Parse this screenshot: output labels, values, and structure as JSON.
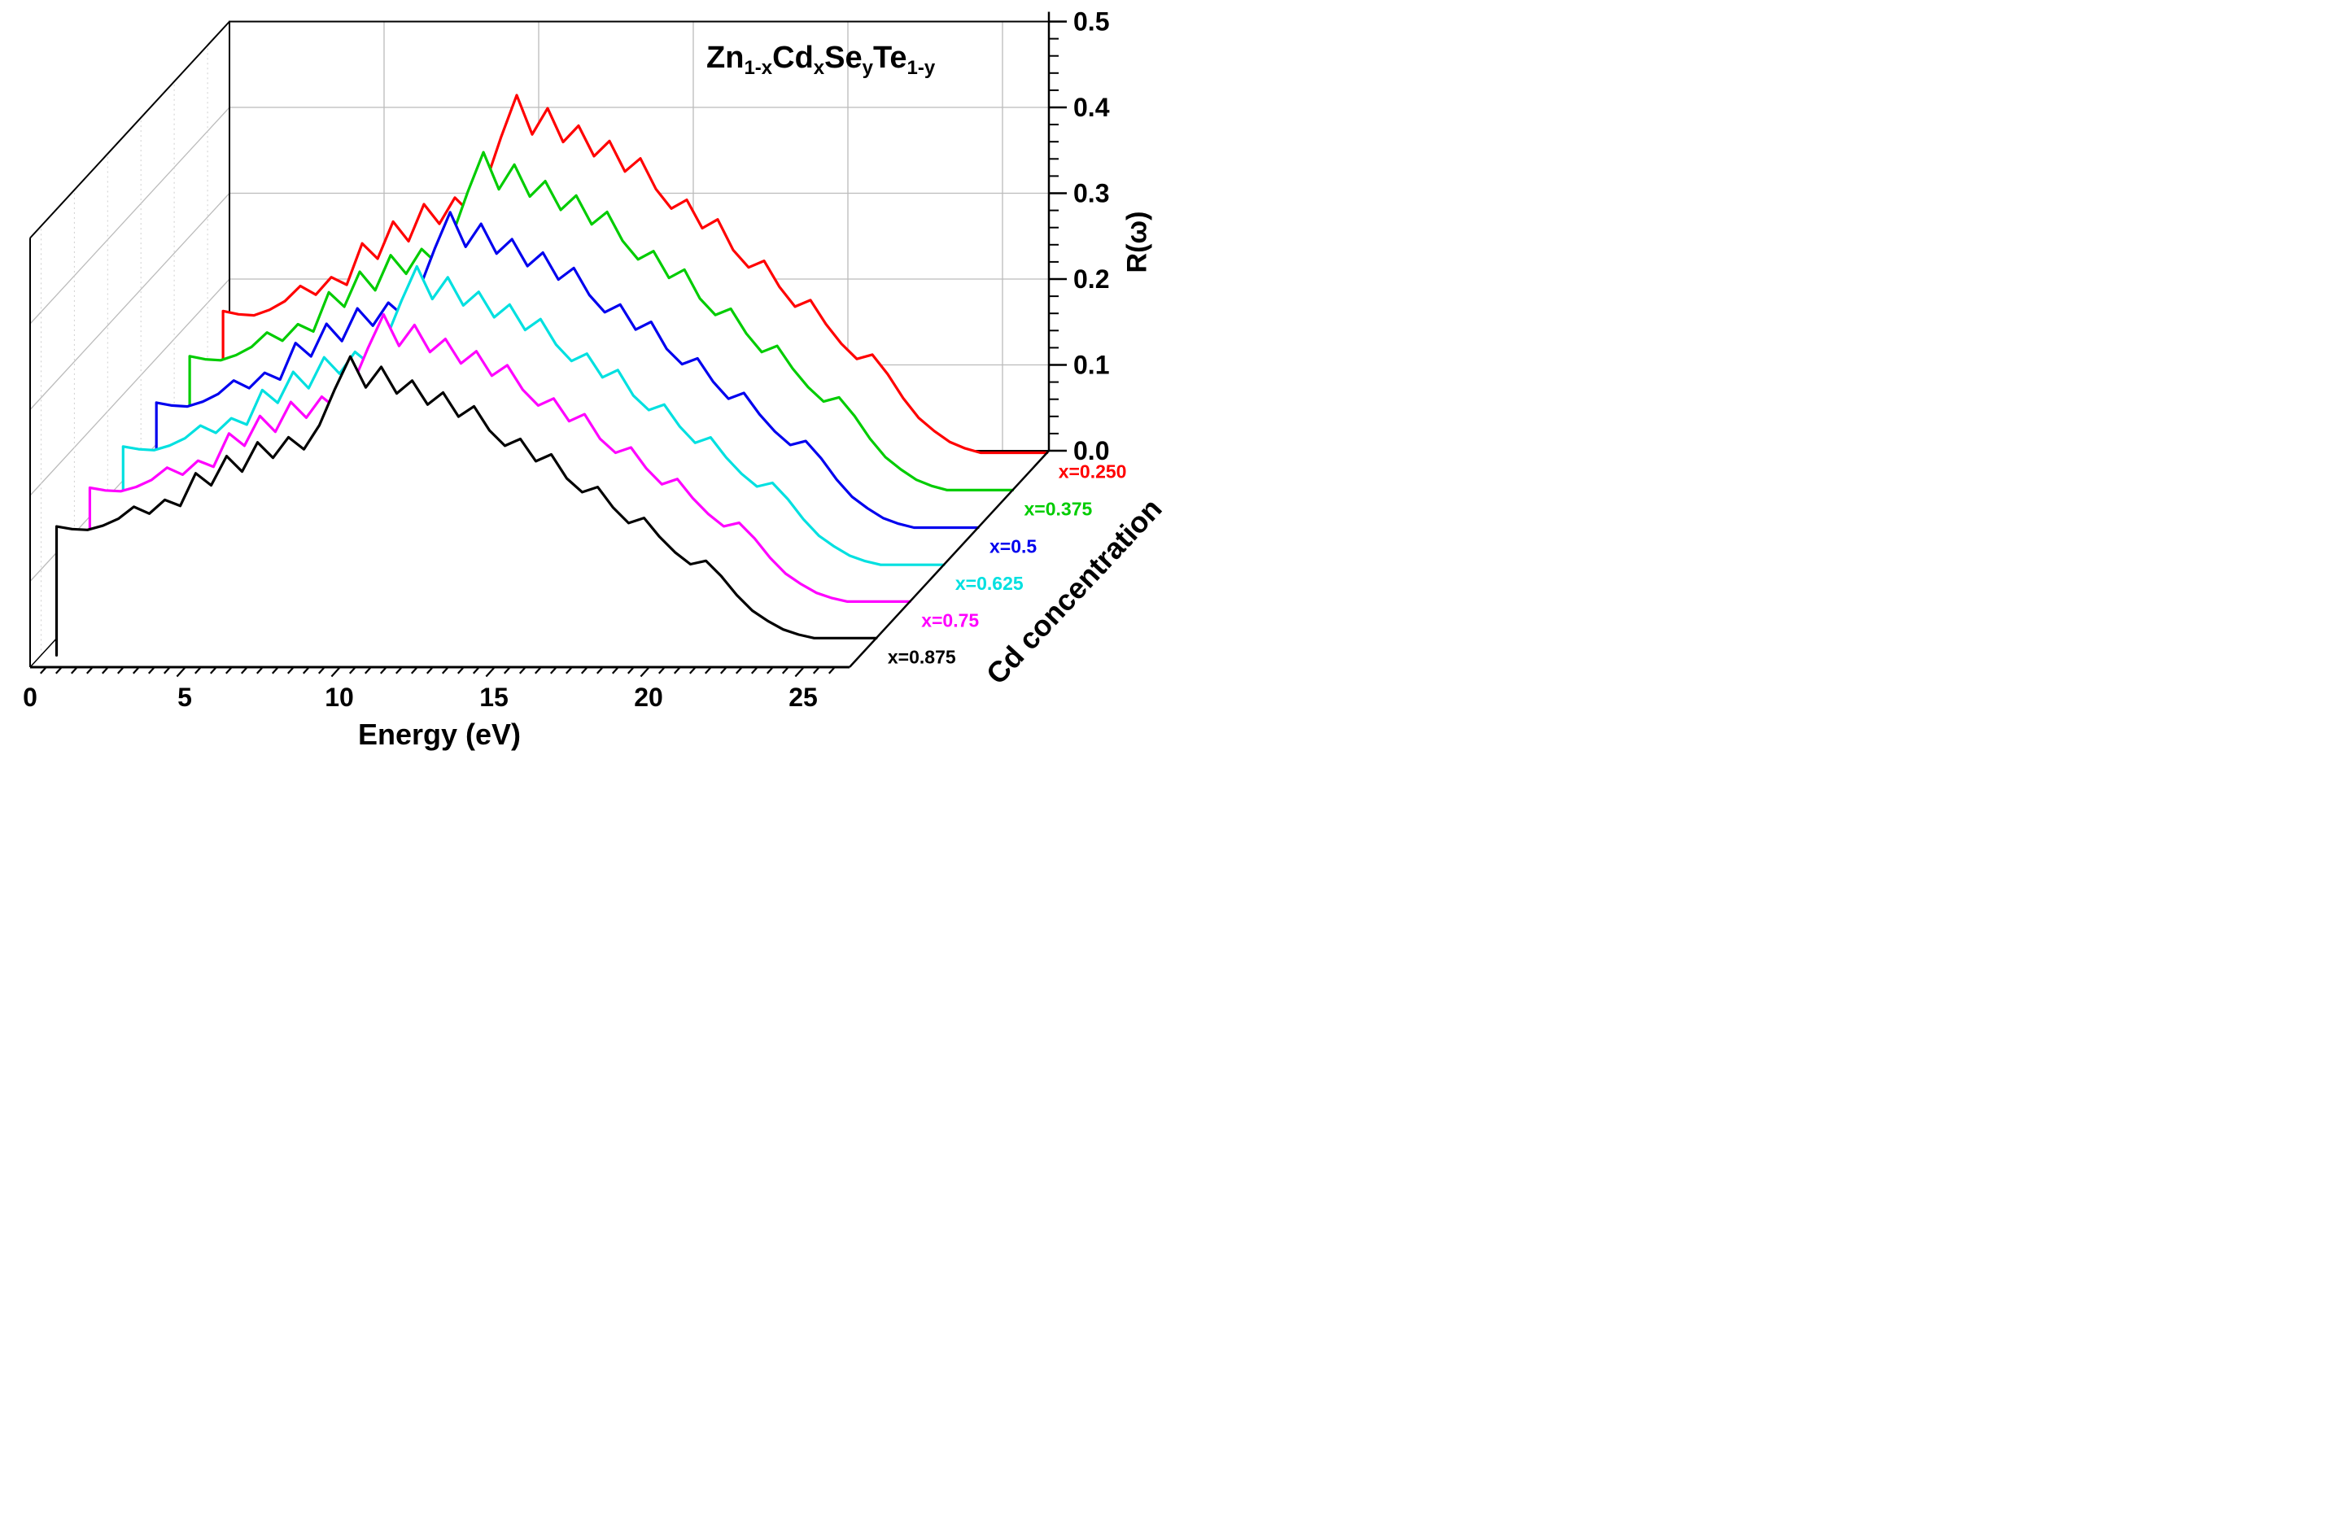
{
  "chart_data": {
    "type": "line",
    "style": "3d-waterfall",
    "title": {
      "plain": "Zn1-xCdxSeyTe1-y",
      "parts": [
        {
          "t": "Zn"
        },
        {
          "t": "1-x",
          "sub": true
        },
        {
          "t": "Cd"
        },
        {
          "t": "x",
          "sub": true
        },
        {
          "t": "Se"
        },
        {
          "t": "y",
          "sub": true
        },
        {
          "t": "Te"
        },
        {
          "t": "1-y",
          "sub": true
        }
      ]
    },
    "x_axis": {
      "label": "Energy (eV)",
      "ticks": [
        0,
        5,
        10,
        15,
        20,
        25
      ],
      "range": [
        0,
        26.5
      ],
      "hatch_step": 0.5
    },
    "y_axis": {
      "label": "R(ω)",
      "ticks": [
        "0.0",
        "0.1",
        "0.2",
        "0.3",
        "0.4",
        "0.5"
      ],
      "range": [
        0,
        0.5
      ],
      "minor_step": 0.02
    },
    "z_axis": {
      "label": "Cd concentration"
    },
    "grid": {
      "color": "#bbbbbb",
      "back_wall_x_lines": [
        5,
        10,
        15,
        20,
        25
      ],
      "back_wall_y_lines": [
        0.1,
        0.2,
        0.3,
        0.4
      ]
    },
    "energy": [
      0.5,
      1.0,
      1.5,
      2.0,
      2.5,
      3.0,
      3.5,
      4.0,
      4.5,
      5.0,
      5.5,
      6.0,
      6.5,
      7.0,
      7.5,
      8.0,
      8.5,
      9.0,
      9.5,
      10.0,
      10.5,
      11.0,
      11.5,
      12.0,
      12.5,
      13.0,
      13.5,
      14.0,
      14.5,
      15.0,
      15.5,
      16.0,
      16.5,
      17.0,
      17.5,
      18.0,
      18.5,
      19.0,
      19.5,
      20.0,
      20.5,
      21.0,
      21.5,
      22.0,
      22.5,
      23.0,
      23.5,
      24.0,
      24.5,
      25.0
    ],
    "base_reflectivity": [
      0.15,
      0.147,
      0.146,
      0.151,
      0.159,
      0.173,
      0.165,
      0.181,
      0.174,
      0.212,
      0.198,
      0.232,
      0.214,
      0.248,
      0.23,
      0.254,
      0.24,
      0.268,
      0.31,
      0.348,
      0.312,
      0.336,
      0.305,
      0.32,
      0.292,
      0.306,
      0.278,
      0.29,
      0.262,
      0.244,
      0.252,
      0.226,
      0.234,
      0.206,
      0.19,
      0.196,
      0.172,
      0.154,
      0.16,
      0.138,
      0.12,
      0.106,
      0.11,
      0.092,
      0.07,
      0.052,
      0.04,
      0.03,
      0.024,
      0.02
    ],
    "values_note": "R(E) of each series = base_reflectivity x scale; curves offset along the Cd-concentration depth axis",
    "series": [
      {
        "label": "x=0.250",
        "color": "#ff0000",
        "scale": 1.27,
        "depth": 0.89,
        "peak_R": 0.44
      },
      {
        "label": "x=0.375",
        "color": "#00cc00",
        "scale": 1.2,
        "depth": 0.723,
        "peak_R": 0.42
      },
      {
        "label": "x=0.5",
        "color": "#0000ee",
        "scale": 1.12,
        "depth": 0.556,
        "peak_R": 0.39
      },
      {
        "label": "x=0.625",
        "color": "#00e0e0",
        "scale": 1.06,
        "depth": 0.389,
        "peak_R": 0.37
      },
      {
        "label": "x=0.75",
        "color": "#ff00ff",
        "scale": 1.02,
        "depth": 0.222,
        "peak_R": 0.355
      },
      {
        "label": "x=0.875",
        "color": "#000000",
        "scale": 1.0,
        "depth": 0.055,
        "peak_R": 0.348
      }
    ]
  }
}
